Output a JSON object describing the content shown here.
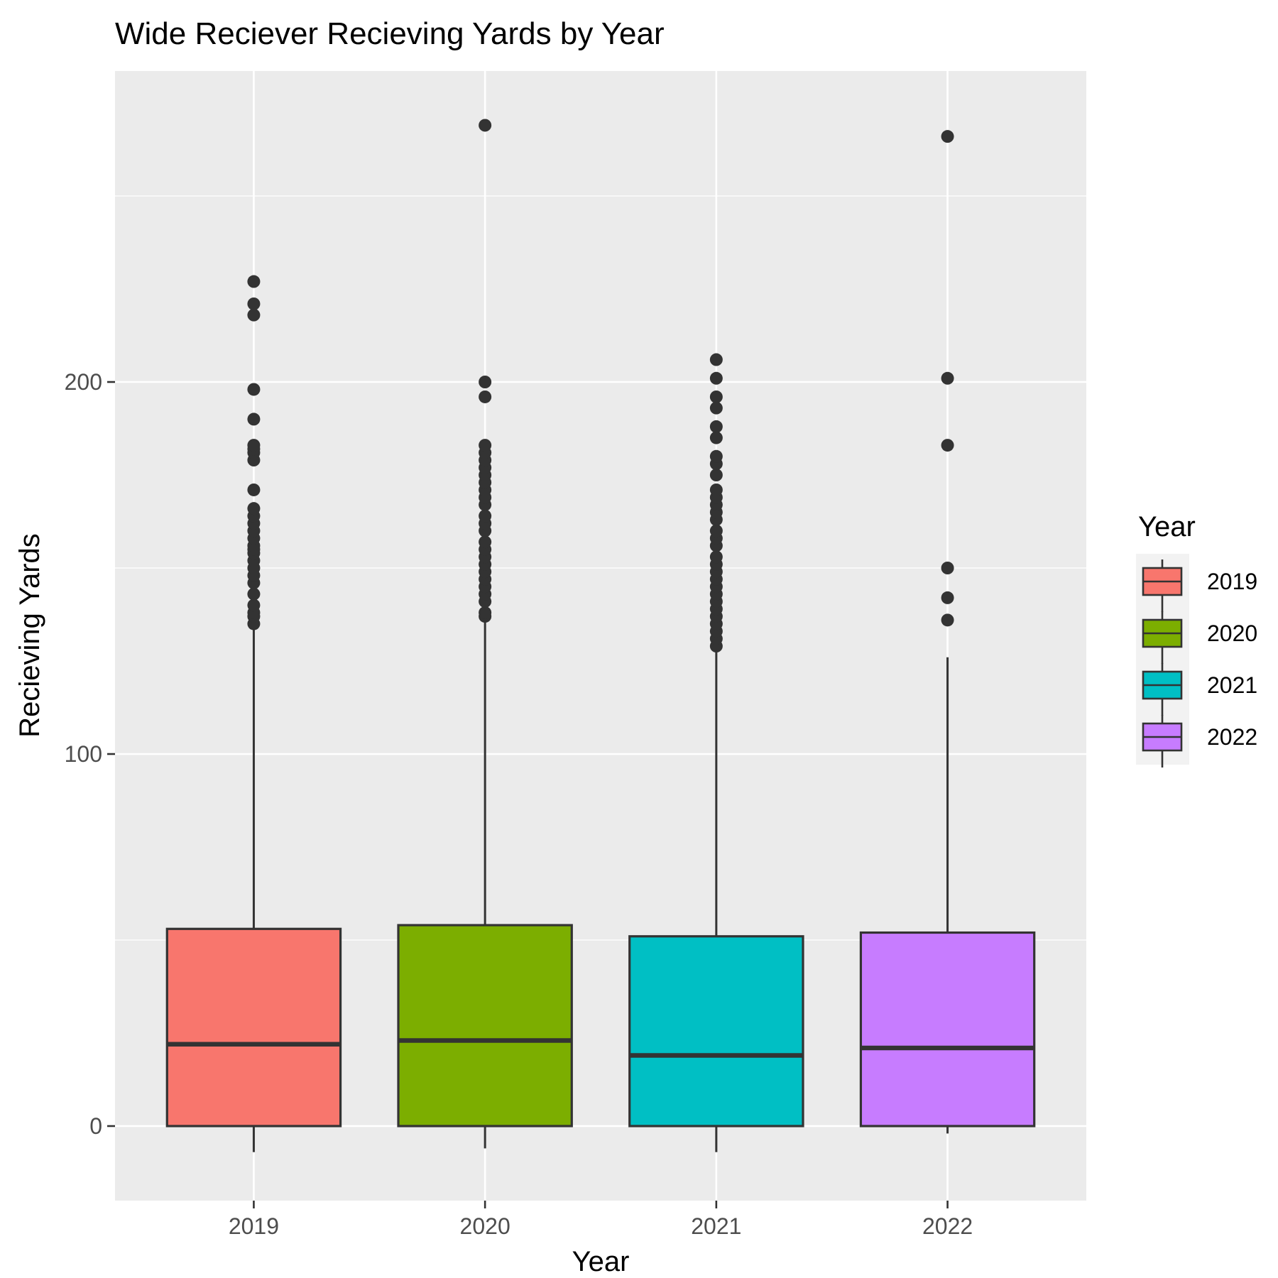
{
  "chart_data": {
    "type": "box",
    "title": "Wide Reciever Recieving Yards by Year",
    "xlabel": "Year",
    "ylabel": "Recieving Yards",
    "ylim": [
      -20,
      284
    ],
    "yticks": [
      0,
      100,
      200
    ],
    "grid": true,
    "legend": {
      "title": "Year",
      "position": "right"
    },
    "categories": [
      "2019",
      "2020",
      "2021",
      "2022"
    ],
    "colors": {
      "2019": "#F8766D",
      "2020": "#7CAE00",
      "2021": "#00BFC4",
      "2022": "#C77CFF"
    },
    "boxes": [
      {
        "name": "2019",
        "whisker_low": -7,
        "q1": 0,
        "median": 22,
        "q3": 53,
        "whisker_high": 134,
        "outliers": [
          135,
          137,
          138,
          140,
          143,
          146,
          148,
          150,
          152,
          154,
          155,
          156,
          158,
          160,
          162,
          164,
          166,
          171,
          179,
          181,
          182,
          183,
          190,
          198,
          218,
          221,
          227
        ]
      },
      {
        "name": "2020",
        "whisker_low": -6,
        "q1": 0,
        "median": 23,
        "q3": 54,
        "whisker_high": 136,
        "outliers": [
          137,
          138,
          141,
          143,
          145,
          147,
          149,
          151,
          153,
          155,
          157,
          160,
          162,
          164,
          167,
          169,
          171,
          173,
          175,
          177,
          179,
          181,
          183,
          196,
          200,
          269
        ]
      },
      {
        "name": "2021",
        "whisker_low": -7,
        "q1": 0,
        "median": 19,
        "q3": 51,
        "whisker_high": 128,
        "outliers": [
          129,
          131,
          133,
          135,
          137,
          139,
          141,
          143,
          145,
          147,
          149,
          151,
          153,
          156,
          158,
          160,
          163,
          165,
          167,
          169,
          171,
          175,
          178,
          180,
          185,
          188,
          193,
          196,
          201,
          206
        ]
      },
      {
        "name": "2022",
        "whisker_low": -2,
        "q1": 0,
        "median": 21,
        "q3": 52,
        "whisker_high": 126,
        "outliers": [
          136,
          142,
          150,
          183,
          201,
          266
        ]
      }
    ]
  }
}
